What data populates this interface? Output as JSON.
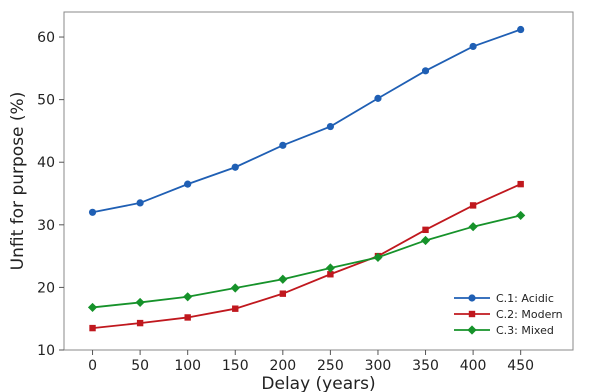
{
  "chart_data": {
    "type": "line",
    "title": "",
    "xlabel": "Delay (years)",
    "ylabel": "Unfit for purpose (%)",
    "x": [
      0,
      50,
      100,
      150,
      200,
      250,
      300,
      350,
      400,
      450
    ],
    "xticks": [
      0,
      50,
      100,
      150,
      200,
      250,
      300,
      350,
      400,
      450
    ],
    "yticks": [
      10,
      20,
      30,
      40,
      50,
      60
    ],
    "xlim": [
      -30,
      505
    ],
    "ylim": [
      10,
      64
    ],
    "grid": false,
    "legend_position": "bottom-right",
    "series": [
      {
        "name": "C.1: Acidic",
        "color": "#1f5fb4",
        "marker": "circle",
        "values": [
          32.0,
          33.5,
          36.5,
          39.2,
          42.7,
          45.7,
          50.2,
          54.6,
          58.5,
          61.2
        ]
      },
      {
        "name": "C.2: Modern",
        "color": "#c0181e",
        "marker": "square",
        "values": [
          13.5,
          14.3,
          15.2,
          16.6,
          19.0,
          22.1,
          25.0,
          29.2,
          33.1,
          36.5
        ]
      },
      {
        "name": "C.3: Mixed",
        "color": "#16922a",
        "marker": "diamond",
        "values": [
          16.8,
          17.6,
          18.5,
          19.9,
          21.3,
          23.1,
          24.8,
          27.5,
          29.7,
          31.5
        ]
      }
    ]
  }
}
